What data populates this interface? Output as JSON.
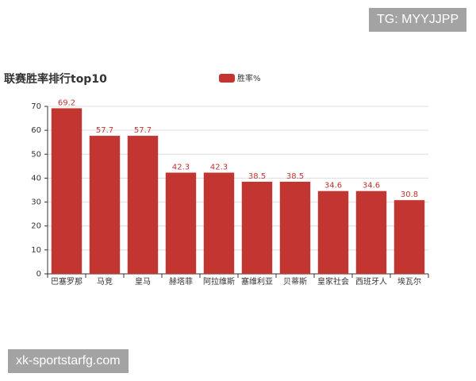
{
  "chart_data": {
    "type": "bar",
    "title": "联赛胜率排行top10",
    "categories": [
      "巴塞罗那",
      "马竞",
      "皇马",
      "赫塔菲",
      "阿拉维斯",
      "塞维利亚",
      "贝蒂斯",
      "皇家社会",
      "西班牙人",
      "埃瓦尔"
    ],
    "series": [
      {
        "name": "胜率%",
        "color": "#c23531",
        "values": [
          69.2,
          57.7,
          57.7,
          42.3,
          42.3,
          38.5,
          38.5,
          34.6,
          34.6,
          30.8
        ]
      }
    ],
    "ylim": [
      0,
      70
    ],
    "yticks": [
      0,
      10,
      20,
      30,
      40,
      50,
      60,
      70
    ],
    "grid": true
  },
  "watermarks": [
    "TG: MYYJJPP",
    "xk-sportstarfg.com"
  ]
}
